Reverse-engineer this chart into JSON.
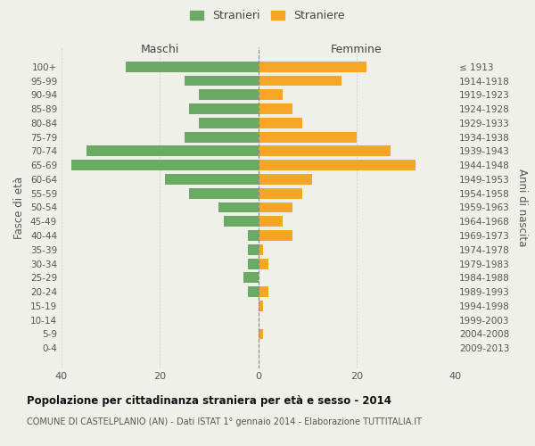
{
  "age_groups": [
    "0-4",
    "5-9",
    "10-14",
    "15-19",
    "20-24",
    "25-29",
    "30-34",
    "35-39",
    "40-44",
    "45-49",
    "50-54",
    "55-59",
    "60-64",
    "65-69",
    "70-74",
    "75-79",
    "80-84",
    "85-89",
    "90-94",
    "95-99",
    "100+"
  ],
  "birth_years": [
    "2009-2013",
    "2004-2008",
    "1999-2003",
    "1994-1998",
    "1989-1993",
    "1984-1988",
    "1979-1983",
    "1974-1978",
    "1969-1973",
    "1964-1968",
    "1959-1963",
    "1954-1958",
    "1949-1953",
    "1944-1948",
    "1939-1943",
    "1934-1938",
    "1929-1933",
    "1924-1928",
    "1919-1923",
    "1914-1918",
    "≤ 1913"
  ],
  "maschi": [
    27,
    15,
    12,
    14,
    12,
    15,
    35,
    38,
    19,
    14,
    8,
    7,
    2,
    2,
    2,
    3,
    2,
    0,
    0,
    0,
    0
  ],
  "femmine": [
    22,
    17,
    5,
    7,
    9,
    20,
    27,
    32,
    11,
    9,
    7,
    5,
    7,
    1,
    2,
    0,
    2,
    1,
    0,
    1,
    0
  ],
  "color_maschi": "#6aaa64",
  "color_femmine": "#f5a623",
  "title": "Popolazione per cittadinanza straniera per età e sesso - 2014",
  "subtitle": "COMUNE DI CASTELPLANIO (AN) - Dati ISTAT 1° gennaio 2014 - Elaborazione TUTTITALIA.IT",
  "xlabel_left": "Maschi",
  "xlabel_right": "Femmine",
  "ylabel_left": "Fasce di età",
  "ylabel_right": "Anni di nascita",
  "legend_stranieri": "Stranieri",
  "legend_straniere": "Straniere",
  "xlim": 40,
  "background_color": "#f0f0eb",
  "grid_color": "#cccccc"
}
